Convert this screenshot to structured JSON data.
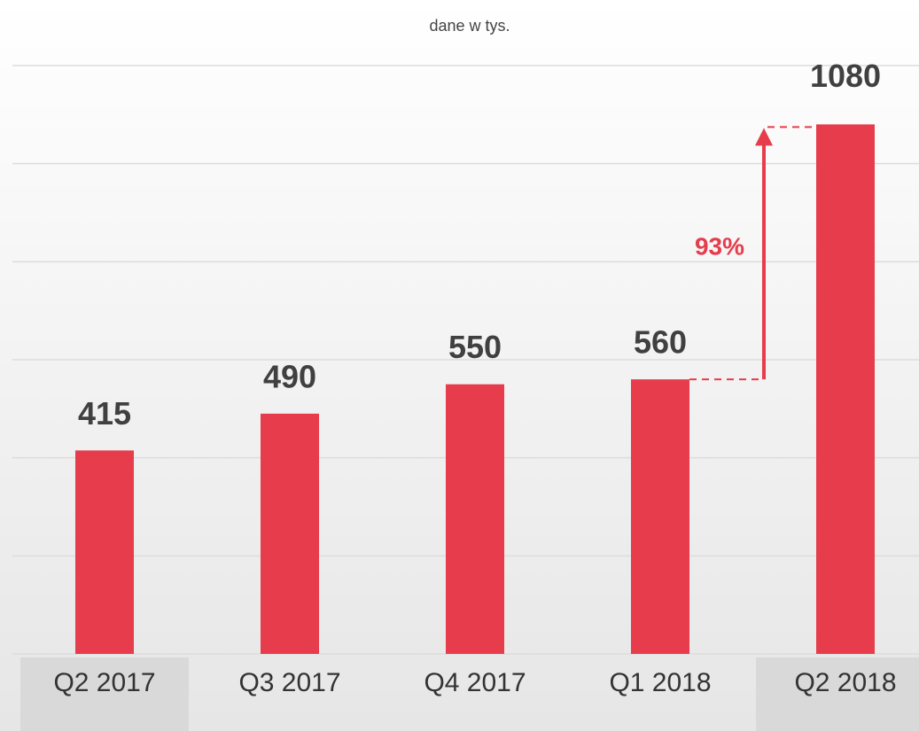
{
  "chart_data": {
    "type": "bar",
    "subtitle": "dane w tys.",
    "categories": [
      "Q2 2017",
      "Q3 2017",
      "Q4 2017",
      "Q1 2018",
      "Q2 2018"
    ],
    "values": [
      415,
      490,
      550,
      560,
      1080
    ],
    "color": "#e63c4b",
    "ylim": [
      0,
      1200
    ],
    "yticks": [
      0,
      200,
      400,
      600,
      800,
      1000,
      1200
    ],
    "grid": true,
    "annotation": "93%"
  }
}
